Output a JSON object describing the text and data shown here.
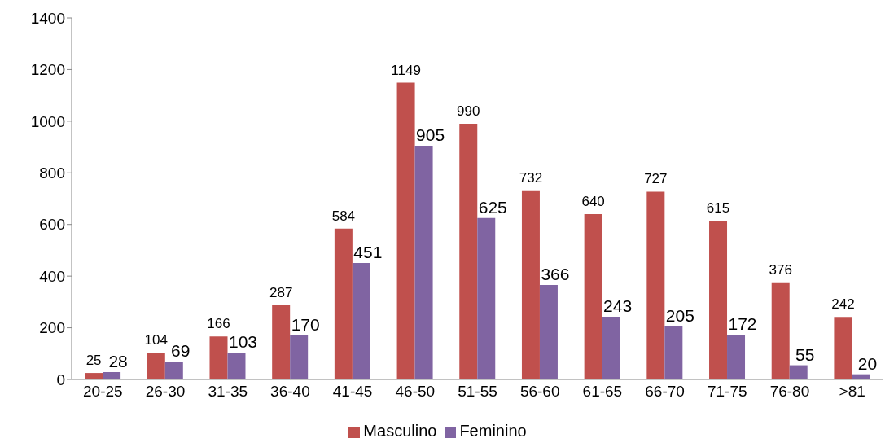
{
  "chart_data": {
    "type": "bar",
    "categories": [
      "20-25",
      "26-30",
      "31-35",
      "36-40",
      "41-45",
      "46-50",
      "51-55",
      "56-60",
      "61-65",
      "66-70",
      "71-75",
      "76-80",
      ">81"
    ],
    "series": [
      {
        "name": "Masculino",
        "color": "#c0504d",
        "values": [
          25,
          104,
          166,
          287,
          584,
          1149,
          990,
          732,
          640,
          727,
          615,
          376,
          242
        ]
      },
      {
        "name": "Feminino",
        "color": "#8064a2",
        "values": [
          28,
          69,
          103,
          170,
          451,
          905,
          625,
          366,
          243,
          205,
          172,
          55,
          20
        ]
      }
    ],
    "ylim": [
      0,
      1400
    ],
    "yticks": [
      0,
      200,
      400,
      600,
      800,
      1000,
      1200,
      1400
    ],
    "grid": false,
    "legend": "bottom",
    "data_labels": true
  }
}
